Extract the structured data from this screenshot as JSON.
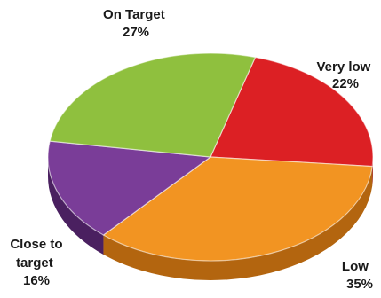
{
  "chart_data": {
    "type": "pie",
    "title": "",
    "slices": [
      {
        "label_lines": [
          "Very low"
        ],
        "percent_text": "22%",
        "value": 22,
        "color": "#dc2024",
        "side_color": "#9a1216"
      },
      {
        "label_lines": [
          "Low"
        ],
        "percent_text": "35%",
        "value": 35,
        "color": "#f29422",
        "side_color": "#b3650f"
      },
      {
        "label_lines": [
          "Close to",
          "target"
        ],
        "percent_text": "16%",
        "value": 16,
        "color": "#7a3d98",
        "side_color": "#4a2060"
      },
      {
        "label_lines": [
          "On Target"
        ],
        "percent_text": "27%",
        "value": 27,
        "color": "#8fc03e",
        "side_color": "#5d8423"
      }
    ]
  }
}
